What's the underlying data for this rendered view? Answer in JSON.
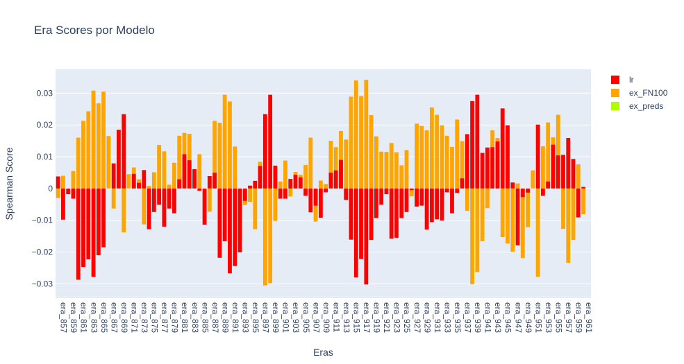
{
  "chart_data": {
    "type": "bar",
    "title": "Era Scores por Modelo",
    "xlabel": "Eras",
    "ylabel": "Spearman Score",
    "ylim": [
      -0.0345,
      0.0375
    ],
    "yticks": [
      -0.03,
      -0.02,
      -0.01,
      0,
      0.01,
      0.02,
      0.03
    ],
    "ytick_labels": [
      "−0.03",
      "−0.02",
      "−0.01",
      "0",
      "0.01",
      "0.02",
      "0.03"
    ],
    "grid": true,
    "barmode": "overlay",
    "legend_position": "top-right",
    "categories": [
      "era_857",
      "era_858",
      "era_859",
      "era_860",
      "era_861",
      "era_862",
      "era_863",
      "era_864",
      "era_865",
      "era_866",
      "era_867",
      "era_868",
      "era_869",
      "era_870",
      "era_871",
      "era_872",
      "era_873",
      "era_874",
      "era_875",
      "era_876",
      "era_877",
      "era_878",
      "era_879",
      "era_880",
      "era_881",
      "era_882",
      "era_883",
      "era_884",
      "era_885",
      "era_886",
      "era_887",
      "era_888",
      "era_889",
      "era_890",
      "era_891",
      "era_892",
      "era_893",
      "era_894",
      "era_895",
      "era_896",
      "era_897",
      "era_898",
      "era_899",
      "era_900",
      "era_901",
      "era_902",
      "era_903",
      "era_904",
      "era_905",
      "era_906",
      "era_907",
      "era_908",
      "era_909",
      "era_910",
      "era_911",
      "era_912",
      "era_913",
      "era_914",
      "era_915",
      "era_916",
      "era_917",
      "era_918",
      "era_919",
      "era_920",
      "era_921",
      "era_922",
      "era_923",
      "era_924",
      "era_925",
      "era_926",
      "era_927",
      "era_928",
      "era_929",
      "era_930",
      "era_931",
      "era_932",
      "era_933",
      "era_934",
      "era_935",
      "era_936",
      "era_937",
      "era_938",
      "era_939",
      "era_940",
      "era_941",
      "era_942",
      "era_943",
      "era_944",
      "era_945",
      "era_946",
      "era_947",
      "era_948",
      "era_949",
      "era_950",
      "era_951",
      "era_952",
      "era_953",
      "era_954",
      "era_955",
      "era_956",
      "era_957",
      "era_958",
      "era_959",
      "era_960",
      "era_961",
      "era_962"
    ],
    "series": [
      {
        "name": "ex_FN100",
        "color": "#ffa500",
        "values": [
          -0.003,
          0.004,
          0,
          0.0055,
          0.016,
          0.0213,
          0.0243,
          0.0308,
          0.0268,
          0.0305,
          0.0165,
          -0.0063,
          0,
          -0.0138,
          0.0045,
          0.0066,
          0.0029,
          -0.0113,
          0.0008,
          0.0051,
          0.0137,
          0.0117,
          0.0012,
          0.0081,
          0.0166,
          0.0175,
          0.0172,
          0.0035,
          0.0108,
          0,
          -0.0073,
          0.0213,
          0.0207,
          0.0295,
          0.0274,
          0.0132,
          -0.0168,
          -0.0052,
          -0.0042,
          -0.0128,
          0.0084,
          -0.0305,
          -0.0298,
          -0.0102,
          0.0022,
          0.0088,
          -0.0025,
          0.0052,
          0.0043,
          0.0074,
          0.016,
          -0.0104,
          0.0025,
          0.0014,
          0.015,
          0.013,
          0.0181,
          0.0154,
          0.0289,
          0.034,
          0.0291,
          0.0342,
          0.0231,
          0.0164,
          0.0116,
          0.0115,
          0.0143,
          0.0114,
          0.0073,
          0.0121,
          -0.0024,
          0.0204,
          0.0197,
          0.0183,
          0.0255,
          0.0232,
          0.0199,
          0.0166,
          0.0131,
          0.0217,
          0.0149,
          -0.007,
          -0.0301,
          -0.0263,
          -0.0166,
          -0.0062,
          0.0183,
          0.0159,
          -0.0153,
          -0.0173,
          -0.0199,
          0.0016,
          -0.0219,
          -0.0122,
          0.0057,
          -0.0278,
          0.0133,
          0.0208,
          0.0161,
          0.0232,
          -0.0127,
          -0.0234,
          -0.0162,
          0.0076,
          -0.0081,
          0
        ]
      },
      {
        "name": "lr",
        "color": "#ff0000",
        "values": [
          0.0038,
          -0.0098,
          -0.0018,
          -0.0032,
          -0.0287,
          -0.0247,
          -0.0223,
          -0.0278,
          -0.021,
          -0.0185,
          0,
          0.0079,
          0.0185,
          0.0234,
          0,
          0.0046,
          0.0018,
          0.0058,
          -0.0128,
          -0.0074,
          -0.0051,
          -0.012,
          -0.0063,
          -0.0078,
          0.0029,
          0.0108,
          0.0089,
          0.0061,
          -0.0007,
          -0.0114,
          0.0039,
          0.005,
          -0.0218,
          -0.0166,
          -0.0267,
          -0.0244,
          -0.0201,
          -0.0039,
          0.0009,
          0.0024,
          0.0071,
          0.0234,
          0.0295,
          0.0072,
          -0.0032,
          -0.0032,
          0.003,
          0.0043,
          0.0035,
          -0.0023,
          -0.0075,
          -0.0054,
          -0.0092,
          -0.0012,
          0.005,
          0.0057,
          0.009,
          -0.0036,
          -0.0161,
          -0.028,
          -0.0222,
          -0.0302,
          -0.0162,
          -0.0093,
          -0.0051,
          -0.0018,
          -0.0158,
          -0.0155,
          -0.0093,
          -0.0074,
          -0.0005,
          -0.0057,
          -0.0054,
          -0.0129,
          -0.0106,
          -0.0097,
          -0.0101,
          -0.0012,
          -0.0078,
          -0.0014,
          0.0032,
          0.0171,
          0.0275,
          0.0295,
          0.0112,
          0.0129,
          0.013,
          0.0148,
          0.0252,
          0.0199,
          0.0019,
          -0.0179,
          -0.0027,
          -0.0013,
          0,
          0.0201,
          -0.0023,
          0.0022,
          0.0138,
          0.0104,
          0.0106,
          0.0159,
          0.0093,
          -0.0091,
          0.0005,
          0
        ]
      },
      {
        "name": "ex_preds",
        "color": "#adff00",
        "values": [
          0,
          0,
          0,
          0,
          0,
          0,
          0,
          0,
          0,
          0,
          0,
          0,
          0,
          0,
          0,
          0,
          0,
          0,
          0,
          0,
          0,
          0,
          0,
          0,
          0,
          0,
          0,
          0,
          0,
          0,
          0,
          0,
          0,
          0,
          0,
          0,
          0,
          0,
          0,
          0,
          0,
          0,
          0,
          0,
          0,
          0,
          0,
          0,
          0,
          0,
          0,
          0,
          0,
          0,
          0,
          0,
          0,
          0,
          0,
          0,
          0,
          0,
          0,
          0,
          0,
          0,
          0,
          0,
          0,
          0,
          0,
          0,
          0,
          0,
          0,
          0,
          0,
          0,
          0,
          0,
          0,
          0,
          0,
          0,
          0,
          0,
          0,
          0,
          0,
          0,
          0,
          0,
          0,
          0,
          0,
          0,
          0,
          0,
          0,
          0,
          0,
          0,
          0,
          0,
          0,
          0
        ]
      }
    ],
    "legend": [
      "lr",
      "ex_FN100",
      "ex_preds"
    ]
  }
}
